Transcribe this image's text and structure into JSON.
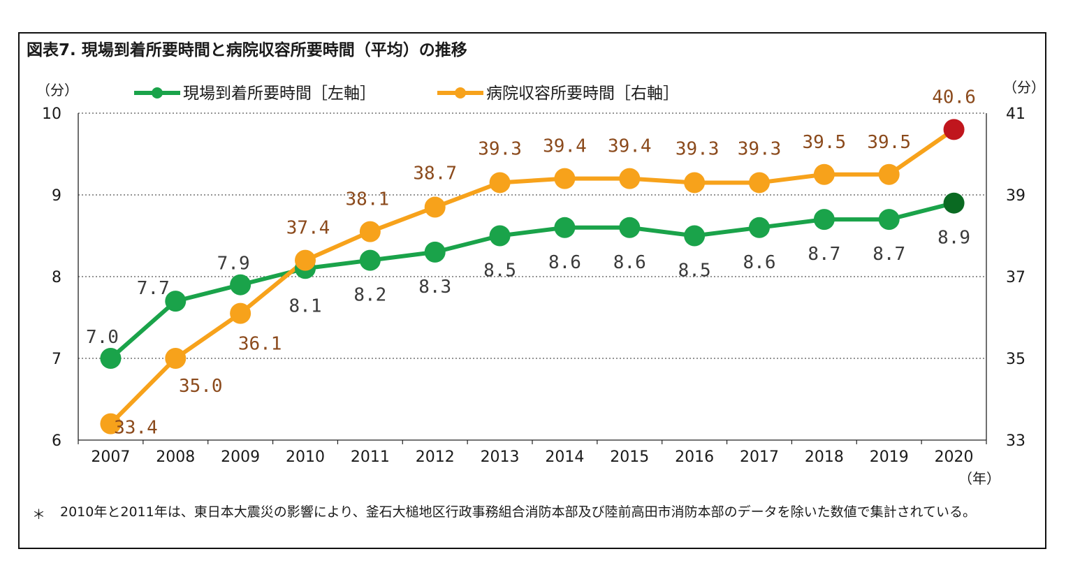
{
  "title": "図表7. 現場到着所要時間と病院収容所要時間（平均）の推移",
  "colors": {
    "green": "#1aa34a",
    "orange": "#f7a21b",
    "orangeLabel": "#8b4a1c",
    "greenLast": "#0a6a22",
    "orangeLast": "#c0161d",
    "grid": "#555555"
  },
  "chart_data": {
    "type": "line",
    "categories": [
      "2007",
      "2008",
      "2009",
      "2010",
      "2011",
      "2012",
      "2013",
      "2014",
      "2015",
      "2016",
      "2017",
      "2018",
      "2019",
      "2020"
    ],
    "left_axis": {
      "unit": "（分）",
      "ticks": [
        "10",
        "9",
        "8",
        "7",
        "6"
      ],
      "ylim": [
        6,
        10
      ]
    },
    "right_axis": {
      "unit": "（分）",
      "ticks": [
        "41",
        "39",
        "37",
        "35",
        "33"
      ],
      "ylim": [
        33,
        41
      ]
    },
    "x_unit": "（年）",
    "series": [
      {
        "name": "現場到着所要時間［左軸］",
        "axis": "left",
        "values": [
          7.0,
          7.7,
          7.9,
          8.1,
          8.2,
          8.3,
          8.5,
          8.6,
          8.6,
          8.5,
          8.6,
          8.7,
          8.7,
          8.9
        ],
        "labels": [
          "7.0",
          "7.7",
          "7.9",
          "8.1",
          "8.2",
          "8.3",
          "8.5",
          "8.6",
          "8.6",
          "8.5",
          "8.6",
          "8.7",
          "8.7",
          "8.9"
        ]
      },
      {
        "name": "病院収容所要時間［右軸］",
        "axis": "right",
        "values": [
          33.4,
          35.0,
          36.1,
          37.4,
          38.1,
          38.7,
          39.3,
          39.4,
          39.4,
          39.3,
          39.3,
          39.5,
          39.5,
          40.6
        ],
        "labels": [
          "33.4",
          "35.0",
          "36.1",
          "37.4",
          "38.1",
          "38.7",
          "39.3",
          "39.4",
          "39.4",
          "39.3",
          "39.3",
          "39.5",
          "39.5",
          "40.6"
        ]
      }
    ]
  },
  "note": {
    "mark": "＊",
    "text": "2010年と2011年は、東日本大震災の影響により、釜石大槌地区行政事務組合消防本部及び陸前高田市消防本部のデータを除いた数値で集計されている。"
  }
}
